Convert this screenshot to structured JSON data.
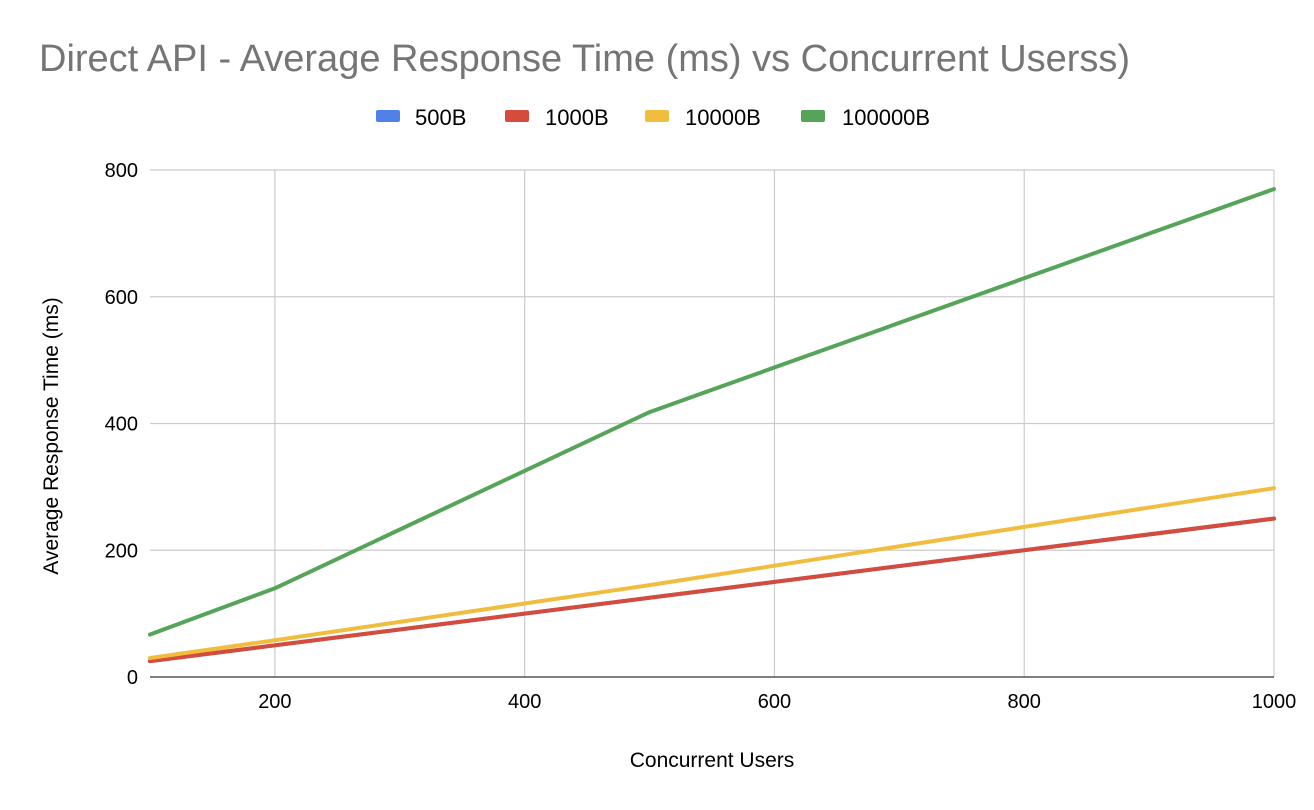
{
  "chart_data": {
    "type": "line",
    "title": "Direct API - Average Response Time (ms) vs Concurrent Userss)",
    "xlabel": "Concurrent Users",
    "ylabel": "Average Response Time (ms)",
    "xlim": [
      100,
      1000
    ],
    "ylim": [
      0,
      800
    ],
    "x_ticks": [
      200,
      400,
      600,
      800,
      1000
    ],
    "y_ticks": [
      0,
      200,
      400,
      600,
      800
    ],
    "grid": true,
    "legend_position": "top-center",
    "x": [
      100,
      200,
      500,
      1000
    ],
    "series": [
      {
        "name": "500B",
        "color": "#4285f4",
        "values": [
          25,
          50,
          125,
          250
        ]
      },
      {
        "name": "1000B",
        "color": "#db4437",
        "values": [
          25,
          50,
          125,
          250
        ]
      },
      {
        "name": "10000B",
        "color": "#f4b400",
        "values": [
          30,
          58,
          145,
          298
        ]
      },
      {
        "name": "100000B",
        "color": "#0f9d58",
        "values": [
          67,
          140,
          418,
          770
        ]
      }
    ],
    "series_display_colors": [
      "#4f81e8",
      "#d54c3c",
      "#f1bd3f",
      "#55a459"
    ]
  }
}
